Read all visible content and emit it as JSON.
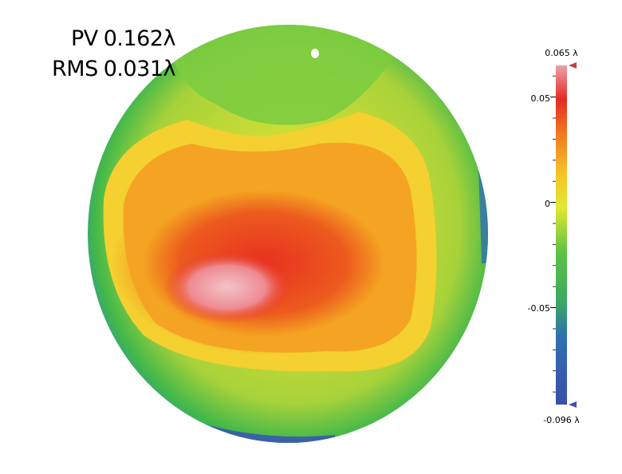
{
  "stats": {
    "pv_label": "PV",
    "pv_value": "0.162λ",
    "rms_label": "RMS",
    "rms_value": "0.031λ"
  },
  "colorbar": {
    "max_label": "0.065 λ",
    "min_label": "-0.096 λ",
    "ticks": [
      "0.05",
      "0",
      "-0.05"
    ],
    "tick_values": [
      0.05,
      0,
      -0.05
    ],
    "max_value": 0.065,
    "min_value": -0.096,
    "colors": [
      "#3a4fa8",
      "#2f9fb0",
      "#3aba4a",
      "#b0d43a",
      "#f0ee30",
      "#f6a020",
      "#e82020",
      "#e8a0a8"
    ]
  }
}
